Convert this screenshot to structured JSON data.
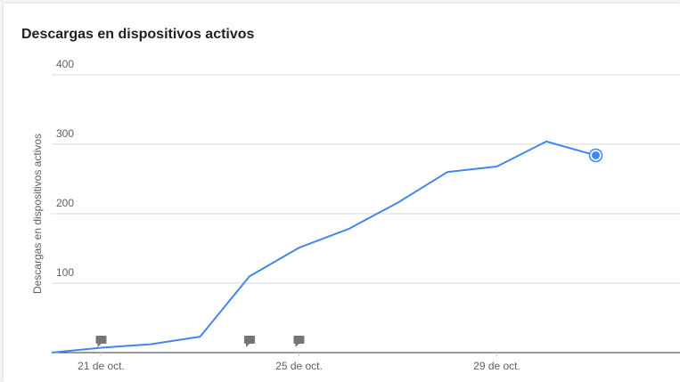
{
  "card": {
    "title": "Descargas en dispositivos activos"
  },
  "chart_data": {
    "type": "line",
    "title": "Descargas en dispositivos activos",
    "xlabel": "",
    "ylabel": "Descargas en dispositivos activos",
    "ylim": [
      0,
      400
    ],
    "yticks": [
      100,
      200,
      300,
      400
    ],
    "xticks": [
      {
        "day": 21,
        "label": "21 de oct."
      },
      {
        "day": 25,
        "label": "25 de oct."
      },
      {
        "day": 29,
        "label": "29 de oct."
      }
    ],
    "series": [
      {
        "color": "#4285f4",
        "points": [
          {
            "day": 20,
            "value": 0
          },
          {
            "day": 21,
            "value": 7
          },
          {
            "day": 22,
            "value": 12
          },
          {
            "day": 23,
            "value": 23
          },
          {
            "day": 24,
            "value": 110
          },
          {
            "day": 25,
            "value": 151
          },
          {
            "day": 26,
            "value": 178
          },
          {
            "day": 27,
            "value": 216
          },
          {
            "day": 28,
            "value": 260
          },
          {
            "day": 29,
            "value": 268
          },
          {
            "day": 30,
            "value": 304
          },
          {
            "day": 31,
            "value": 284
          }
        ]
      }
    ],
    "annotations": [
      {
        "day": 21,
        "icon": "comment-flag-icon"
      },
      {
        "day": 24,
        "icon": "comment-flag-icon"
      },
      {
        "day": 25,
        "icon": "comment-flag-icon"
      }
    ],
    "highlighted_point": {
      "day": 31,
      "value": 284
    },
    "grid": true
  }
}
